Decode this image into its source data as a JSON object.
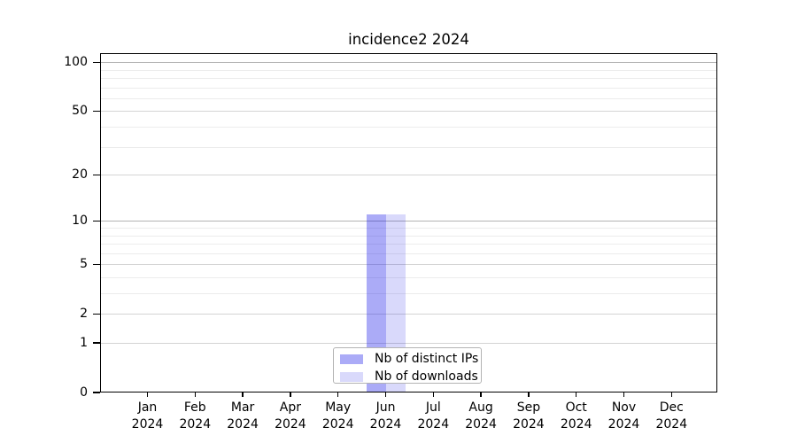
{
  "chart_data": {
    "type": "bar",
    "title": "incidence2 2024",
    "x": {
      "months": [
        "Jan",
        "Feb",
        "Mar",
        "Apr",
        "May",
        "Jun",
        "Jul",
        "Aug",
        "Sep",
        "Oct",
        "Nov",
        "Dec"
      ],
      "year": "2024"
    },
    "series": [
      {
        "name": "Nb of distinct IPs",
        "color": "rgba(13,13,232,0.35)",
        "values": [
          0,
          0,
          0,
          0,
          0,
          11,
          0,
          0,
          0,
          0,
          0,
          0
        ]
      },
      {
        "name": "Nb of downloads",
        "color": "rgba(13,13,232,0.155)",
        "values": [
          0,
          0,
          0,
          0,
          0,
          11,
          0,
          0,
          0,
          0,
          0,
          0
        ]
      }
    ],
    "yscale": "log1p",
    "ylim": [
      0,
      114
    ],
    "yticks_major": [
      0,
      1,
      2,
      5,
      10,
      20,
      50,
      100
    ],
    "yticks_minor": [
      3,
      4,
      6,
      7,
      8,
      9,
      30,
      40,
      60,
      70,
      80,
      90
    ],
    "grid": "horizontal",
    "emphasized_gridlines": [
      10,
      100
    ],
    "legend_position": "lower center",
    "colors": {
      "grid_major": "#d4d4d4",
      "grid_minor": "#ececec",
      "grid_emphasis": "#b3b3b3",
      "spine": "#000000",
      "text": "#000000"
    }
  }
}
